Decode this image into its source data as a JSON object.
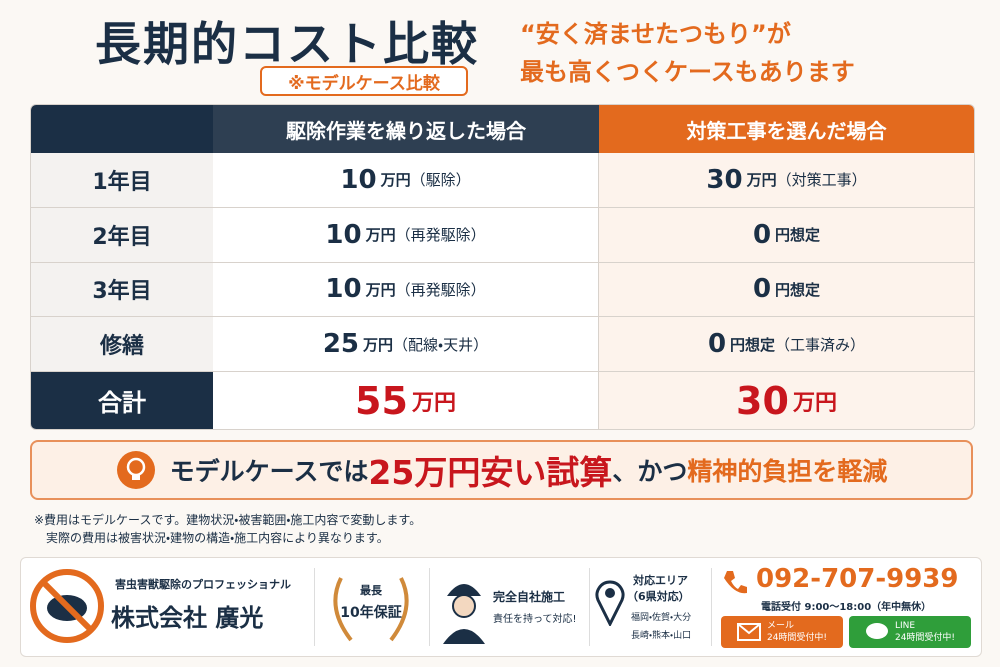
{
  "header": {
    "title": "長期的コスト比較",
    "badge": "※モデルケース比較",
    "tagline": [
      "“安く済ませたつもり”が",
      "最も高くつくケースもあります"
    ]
  },
  "table": {
    "headers": [
      "駆除作業を繰り返した場合",
      "対策工事を選んだ場合"
    ],
    "rows": [
      {
        "label": "1年目",
        "left": {
          "amount": 10,
          "unit": "万円",
          "note": "（駆除）"
        },
        "right": {
          "amount": 30,
          "unit": "万円",
          "note": "（対策工事）"
        }
      },
      {
        "label": "2年目",
        "left": {
          "amount": 10,
          "unit": "万円",
          "note": "（再発駆除）"
        },
        "right": {
          "amount": 0,
          "unit": "円想定"
        }
      },
      {
        "label": "3年目",
        "left": {
          "amount": 10,
          "unit": "万円",
          "note": "（再発駆除）"
        },
        "right": {
          "amount": 0,
          "unit": "円想定"
        }
      },
      {
        "label": "修繕",
        "left": {
          "amount": 25,
          "unit": "万円",
          "note": "（配線・天井）"
        },
        "right": {
          "amount": 0,
          "unit": "円想定",
          "note": "（工事済み）"
        }
      }
    ],
    "total": {
      "label": "合計",
      "left": {
        "amount": 55,
        "unit": "万円"
      },
      "right": {
        "amount": 30,
        "unit": "万円"
      }
    }
  },
  "banner": {
    "lead": "モデルケースでは",
    "highlight": "25万円安い試算",
    "joiner": "、かつ",
    "emphasis": "精神的負担を軽減"
  },
  "notes": [
    "※費用はモデルケースです。建物状況・被害範囲・施工内容で変動します。",
    "実際の費用は被害状況・建物の構造・施工内容により異なります。"
  ],
  "footer": {
    "company": {
      "tagline": "害虫害獣駆除のプロフェッショナル",
      "name": "株式会社 廣光"
    },
    "warranty": {
      "top": "最長",
      "main": "10年保証"
    },
    "inhouse": {
      "title": "完全自社施工",
      "sub": "責任を持って対応!"
    },
    "area": {
      "title": "対応エリア",
      "count": "（6県対応）",
      "line1": "福岡・佐賀・大分",
      "line2": "長崎・熊本・山口"
    },
    "contact": {
      "phone": "092-707-9939",
      "hours": "電話受付 9:00～18:00（年中無休）",
      "mail": {
        "label": "メール",
        "sub": "24時間受付中!"
      },
      "line": {
        "label": "LINE",
        "sub": "24時間受付中!"
      }
    }
  }
}
